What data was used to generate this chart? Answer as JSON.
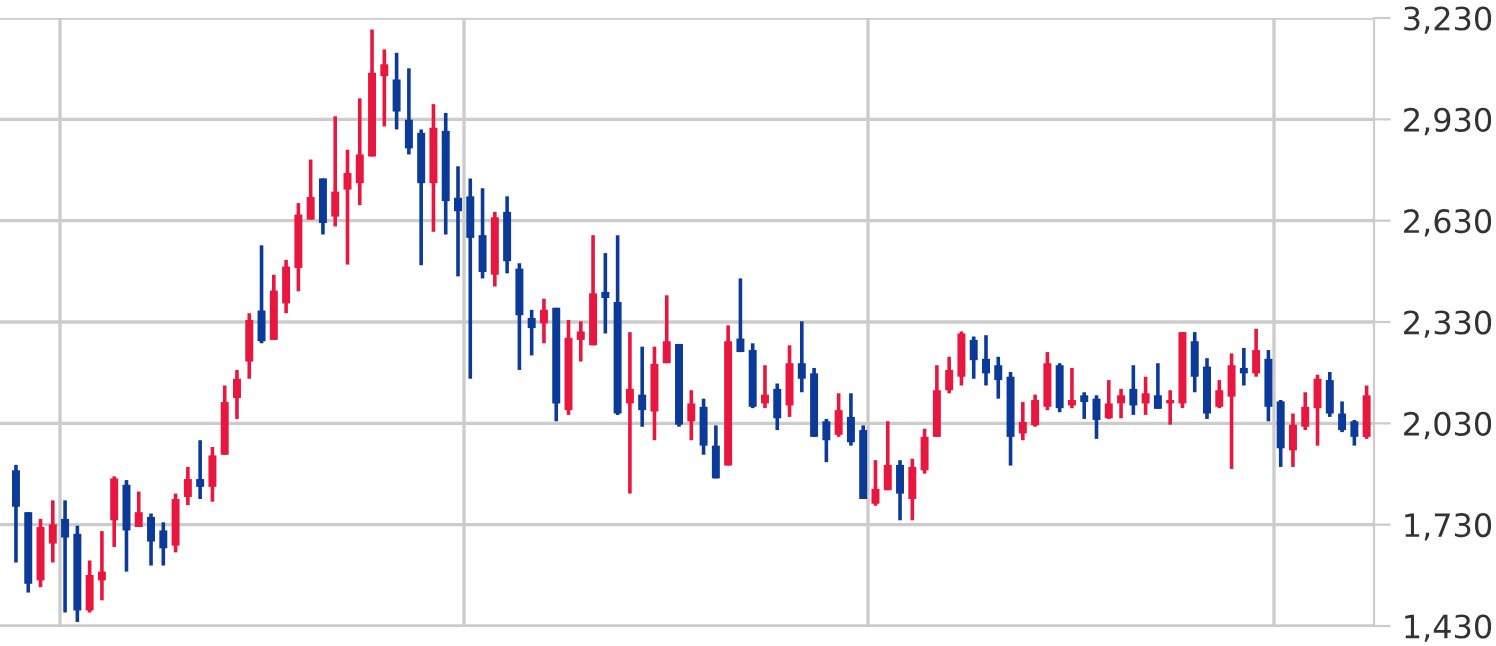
{
  "chart_data": {
    "type": "candlestick",
    "categories": [
      null,
      null,
      null,
      null,
      null,
      null,
      null,
      null,
      null,
      null,
      null,
      null,
      null,
      null,
      null,
      null,
      null,
      null,
      null,
      null,
      null,
      null,
      null,
      null,
      null,
      null,
      null,
      null,
      null,
      null,
      null,
      null,
      null,
      null,
      null,
      null,
      null,
      null,
      null,
      null,
      null,
      null,
      null,
      null,
      null,
      null,
      null,
      null,
      null,
      null,
      null,
      null,
      null,
      null,
      null,
      null,
      null,
      null,
      null,
      null,
      null,
      null,
      null,
      null,
      null,
      null,
      null,
      null,
      null,
      null,
      null,
      null,
      null,
      null,
      null,
      null,
      null,
      null,
      null,
      null,
      null,
      null,
      null,
      null,
      null,
      null,
      null,
      null,
      null,
      null,
      null,
      null,
      null,
      null,
      null,
      null,
      null,
      null,
      null,
      null,
      null,
      null,
      null,
      null,
      null,
      null,
      null,
      null,
      null,
      null,
      null
    ],
    "ohlc": [
      [
        1891,
        1907,
        1618,
        1783
      ],
      [
        1767,
        1767,
        1529,
        1555
      ],
      [
        1565,
        1747,
        1545,
        1723
      ],
      [
        1674,
        1802,
        1618,
        1731
      ],
      [
        1747,
        1802,
        1470,
        1692
      ],
      [
        1703,
        1727,
        1442,
        1476
      ],
      [
        1476,
        1624,
        1470,
        1581
      ],
      [
        1565,
        1711,
        1506,
        1591
      ],
      [
        1743,
        1873,
        1664,
        1867
      ],
      [
        1848,
        1862,
        1591,
        1713
      ],
      [
        1723,
        1828,
        1723,
        1767
      ],
      [
        1753,
        1763,
        1609,
        1680
      ],
      [
        1713,
        1737,
        1609,
        1660
      ],
      [
        1668,
        1822,
        1648,
        1806
      ],
      [
        1812,
        1901,
        1788,
        1865
      ],
      [
        1865,
        1980,
        1806,
        1842
      ],
      [
        1842,
        1960,
        1798,
        1935
      ],
      [
        1937,
        2142,
        1937,
        2093
      ],
      [
        2105,
        2188,
        2043,
        2162
      ],
      [
        2213,
        2356,
        2162,
        2336
      ],
      [
        2364,
        2557,
        2267,
        2273
      ],
      [
        2277,
        2470,
        2277,
        2423
      ],
      [
        2385,
        2514,
        2356,
        2494
      ],
      [
        2490,
        2682,
        2421,
        2648
      ],
      [
        2633,
        2811,
        2633,
        2700
      ],
      [
        2755,
        2755,
        2589,
        2623
      ],
      [
        2642,
        2939,
        2613,
        2716
      ],
      [
        2722,
        2840,
        2500,
        2771
      ],
      [
        2741,
        2992,
        2676,
        2826
      ],
      [
        2820,
        3196,
        2820,
        3068
      ],
      [
        3058,
        3137,
        2909,
        3093
      ],
      [
        3048,
        3127,
        2900,
        2953
      ],
      [
        2929,
        3081,
        2826,
        2844
      ],
      [
        2890,
        2900,
        2498,
        2741
      ],
      [
        2741,
        2975,
        2597,
        2905
      ],
      [
        2896,
        2949,
        2589,
        2688
      ],
      [
        2698,
        2791,
        2465,
        2658
      ],
      [
        2702,
        2755,
        2162,
        2579
      ],
      [
        2587,
        2726,
        2459,
        2478
      ],
      [
        2470,
        2656,
        2435,
        2640
      ],
      [
        2656,
        2702,
        2474,
        2510
      ],
      [
        2488,
        2504,
        2188,
        2350
      ],
      [
        2342,
        2366,
        2231,
        2312
      ],
      [
        2326,
        2399,
        2267,
        2366
      ],
      [
        2372,
        2372,
        2036,
        2089
      ],
      [
        2069,
        2336,
        2055,
        2283
      ],
      [
        2277,
        2332,
        2213,
        2302
      ],
      [
        2261,
        2587,
        2261,
        2415
      ],
      [
        2419,
        2534,
        2296,
        2401
      ],
      [
        2389,
        2587,
        2055,
        2059
      ],
      [
        2089,
        2300,
        1822,
        2132
      ],
      [
        2115,
        2257,
        2020,
        2069
      ],
      [
        2065,
        2257,
        1980,
        2206
      ],
      [
        2208,
        2409,
        2208,
        2273
      ],
      [
        2265,
        2265,
        2020,
        2026
      ],
      [
        2036,
        2128,
        1980,
        2089
      ],
      [
        2079,
        2103,
        1937,
        1964
      ],
      [
        1964,
        2024,
        1867,
        1867
      ],
      [
        1905,
        2320,
        1905,
        2273
      ],
      [
        2281,
        2459,
        2241,
        2241
      ],
      [
        2247,
        2267,
        2075,
        2079
      ],
      [
        2089,
        2202,
        2075,
        2115
      ],
      [
        2132,
        2148,
        2010,
        2045
      ],
      [
        2083,
        2261,
        2049,
        2208
      ],
      [
        2208,
        2332,
        2122,
        2162
      ],
      [
        2178,
        2194,
        1990,
        1990
      ],
      [
        2036,
        2043,
        1915,
        1980
      ],
      [
        1996,
        2119,
        1990,
        2069
      ],
      [
        2049,
        2119,
        1964,
        1974
      ],
      [
        2010,
        2024,
        1806,
        1806
      ],
      [
        1792,
        1921,
        1786,
        1836
      ],
      [
        1832,
        2036,
        1832,
        1907
      ],
      [
        1907,
        1921,
        1743,
        1822
      ],
      [
        1806,
        1925,
        1743,
        1901
      ],
      [
        1891,
        2014,
        1881,
        1990
      ],
      [
        1990,
        2202,
        1990,
        2128
      ],
      [
        2128,
        2227,
        2119,
        2188
      ],
      [
        2168,
        2302,
        2142,
        2296
      ],
      [
        2277,
        2287,
        2162,
        2217
      ],
      [
        2221,
        2291,
        2142,
        2178
      ],
      [
        2202,
        2227,
        2103,
        2158
      ],
      [
        2168,
        2182,
        1905,
        1990
      ],
      [
        2000,
        2093,
        1980,
        2034
      ],
      [
        2024,
        2115,
        2020,
        2099
      ],
      [
        2079,
        2241,
        2069,
        2208
      ],
      [
        2202,
        2208,
        2063,
        2075
      ],
      [
        2083,
        2194,
        2075,
        2099
      ],
      [
        2113,
        2122,
        2043,
        2093
      ],
      [
        2103,
        2113,
        1984,
        2040
      ],
      [
        2045,
        2158,
        2043,
        2089
      ],
      [
        2089,
        2132,
        2045,
        2113
      ],
      [
        2132,
        2202,
        2055,
        2083
      ],
      [
        2089,
        2168,
        2055,
        2119
      ],
      [
        2113,
        2208,
        2073,
        2073
      ],
      [
        2089,
        2128,
        2026,
        2099
      ],
      [
        2089,
        2300,
        2075,
        2300
      ],
      [
        2273,
        2300,
        2122,
        2168
      ],
      [
        2198,
        2223,
        2043,
        2059
      ],
      [
        2079,
        2158,
        2075,
        2128
      ],
      [
        2109,
        2237,
        1895,
        2202
      ],
      [
        2194,
        2253,
        2142,
        2178
      ],
      [
        2178,
        2310,
        2168,
        2247
      ],
      [
        2221,
        2247,
        2036,
        2079
      ],
      [
        2095,
        2099,
        1901,
        1956
      ],
      [
        1950,
        2059,
        1901,
        2026
      ],
      [
        2020,
        2122,
        2010,
        2079
      ],
      [
        2075,
        2174,
        1964,
        2162
      ],
      [
        2158,
        2182,
        2049,
        2059
      ],
      [
        2059,
        2095,
        2004,
        2010
      ],
      [
        2036,
        2040,
        1964,
        1990
      ],
      [
        1990,
        2142,
        1984,
        2113
      ]
    ],
    "colors": [
      "#0b3a99",
      "#0b3a99",
      "#e8173f",
      "#e8173f",
      "#0b3a99",
      "#0b3a99",
      "#e8173f",
      "#e8173f",
      "#e8173f",
      "#0b3a99",
      "#e8173f",
      "#0b3a99",
      "#0b3a99",
      "#e8173f",
      "#e8173f",
      "#0b3a99",
      "#e8173f",
      "#e8173f",
      "#e8173f",
      "#e8173f",
      "#0b3a99",
      "#e8173f",
      "#e8173f",
      "#e8173f",
      "#e8173f",
      "#0b3a99",
      "#e8173f",
      "#e8173f",
      "#e8173f",
      "#e8173f",
      "#e8173f",
      "#0b3a99",
      "#0b3a99",
      "#0b3a99",
      "#e8173f",
      "#0b3a99",
      "#0b3a99",
      "#0b3a99",
      "#0b3a99",
      "#e8173f",
      "#0b3a99",
      "#0b3a99",
      "#0b3a99",
      "#e8173f",
      "#0b3a99",
      "#e8173f",
      "#e8173f",
      "#e8173f",
      "#0b3a99",
      "#0b3a99",
      "#e8173f",
      "#0b3a99",
      "#e8173f",
      "#e8173f",
      "#0b3a99",
      "#e8173f",
      "#0b3a99",
      "#0b3a99",
      "#e8173f",
      "#0b3a99",
      "#0b3a99",
      "#e8173f",
      "#0b3a99",
      "#e8173f",
      "#0b3a99",
      "#0b3a99",
      "#0b3a99",
      "#e8173f",
      "#0b3a99",
      "#0b3a99",
      "#e8173f",
      "#e8173f",
      "#0b3a99",
      "#e8173f",
      "#e8173f",
      "#e8173f",
      "#e8173f",
      "#e8173f",
      "#0b3a99",
      "#0b3a99",
      "#0b3a99",
      "#0b3a99",
      "#e8173f",
      "#e8173f",
      "#e8173f",
      "#0b3a99",
      "#e8173f",
      "#0b3a99",
      "#0b3a99",
      "#e8173f",
      "#e8173f",
      "#0b3a99",
      "#e8173f",
      "#0b3a99",
      "#e8173f",
      "#e8173f",
      "#0b3a99",
      "#0b3a99",
      "#e8173f",
      "#e8173f",
      "#0b3a99",
      "#e8173f",
      "#0b3a99",
      "#0b3a99",
      "#e8173f",
      "#e8173f",
      "#e8173f",
      "#0b3a99",
      "#0b3a99",
      "#0b3a99",
      "#e8173f"
    ],
    "ylim": [
      1430,
      3230
    ],
    "yticks": [
      {
        "value": 1430,
        "label": "1,430"
      },
      {
        "value": 1730,
        "label": "1,730"
      },
      {
        "value": 2030,
        "label": "2,030"
      },
      {
        "value": 2330,
        "label": "2,330"
      },
      {
        "value": 2630,
        "label": "2,630"
      },
      {
        "value": 2930,
        "label": "2,930"
      },
      {
        "value": 3230,
        "label": "3,230"
      }
    ],
    "grid": true,
    "tick_labels": "y"
  }
}
